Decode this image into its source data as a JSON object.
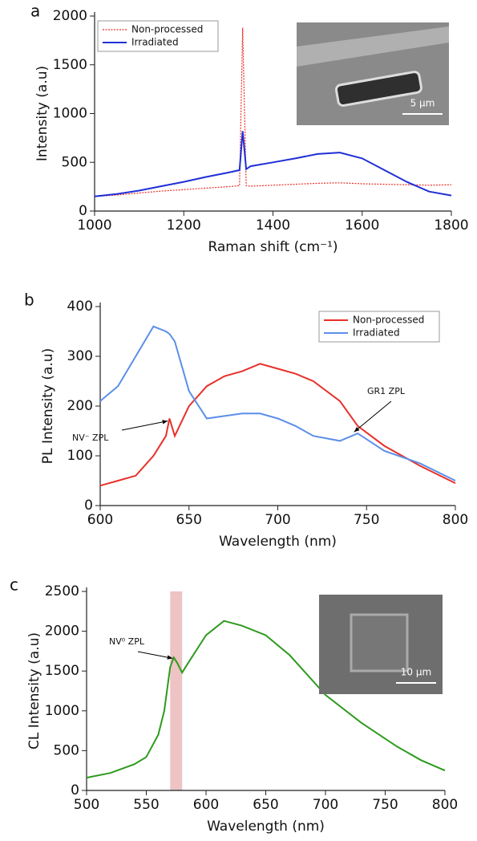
{
  "chart_data": [
    {
      "type": "line",
      "panel": "a",
      "xlabel": "Raman shift (cm⁻¹)",
      "ylabel": "Intensity (a.u)",
      "x": [
        1000,
        1050,
        1100,
        1150,
        1200,
        1250,
        1300,
        1325,
        1332,
        1340,
        1350,
        1400,
        1450,
        1500,
        1550,
        1600,
        1650,
        1700,
        1750,
        1800
      ],
      "series": [
        {
          "name": "Non-processed",
          "color": "#e8302a",
          "dashed": true,
          "values": [
            150,
            165,
            185,
            205,
            220,
            235,
            250,
            260,
            1880,
            260,
            255,
            265,
            275,
            285,
            290,
            280,
            275,
            270,
            265,
            270
          ]
        },
        {
          "name": "Irradiated",
          "color": "#1f2fd6",
          "dashed": false,
          "values": [
            150,
            175,
            210,
            255,
            300,
            350,
            395,
            420,
            820,
            430,
            460,
            500,
            540,
            585,
            600,
            540,
            420,
            300,
            200,
            160
          ]
        }
      ],
      "xlim": [
        1000,
        1800
      ],
      "xticks": [
        1000,
        1200,
        1400,
        1600,
        1800
      ],
      "ylim": [
        0,
        2000
      ],
      "yticks": [
        0,
        500,
        1000,
        1500,
        2000
      ],
      "legend": "upper left",
      "inset_label": "5 μm"
    },
    {
      "type": "line",
      "panel": "b",
      "xlabel": "Wavelength (nm)",
      "ylabel": "PL Intensity (a.u)",
      "x": [
        600,
        610,
        620,
        630,
        637,
        639,
        642,
        650,
        660,
        670,
        680,
        690,
        700,
        710,
        720,
        735,
        745,
        760,
        780,
        800
      ],
      "series": [
        {
          "name": "Non-processed",
          "color": "#e8302a",
          "dashed": false,
          "values": [
            40,
            50,
            60,
            100,
            140,
            175,
            140,
            200,
            240,
            260,
            270,
            285,
            275,
            265,
            250,
            210,
            160,
            120,
            80,
            45
          ]
        },
        {
          "name": "Irradiated",
          "color": "#5b8fe8",
          "dashed": false,
          "values": [
            210,
            240,
            300,
            360,
            350,
            345,
            330,
            230,
            175,
            180,
            185,
            185,
            175,
            160,
            140,
            130,
            145,
            110,
            85,
            50
          ]
        }
      ],
      "xlim": [
        600,
        800
      ],
      "xticks": [
        600,
        650,
        700,
        750,
        800
      ],
      "ylim": [
        0,
        400
      ],
      "yticks": [
        0,
        100,
        200,
        300,
        400
      ],
      "legend": "upper right",
      "annotations": [
        "NV⁻ ZPL",
        "GR1 ZPL"
      ]
    },
    {
      "type": "line",
      "panel": "c",
      "xlabel": "Wavelength (nm)",
      "ylabel": "CL Intensity (a.u)",
      "x": [
        500,
        520,
        540,
        550,
        560,
        565,
        570,
        573,
        576,
        580,
        585,
        600,
        615,
        630,
        650,
        670,
        700,
        730,
        760,
        780,
        800
      ],
      "series": [
        {
          "color": "#2e9a1e",
          "dashed": false,
          "values": [
            160,
            220,
            330,
            420,
            700,
            1000,
            1550,
            1670,
            1600,
            1480,
            1600,
            1950,
            2130,
            2070,
            1950,
            1700,
            1200,
            850,
            550,
            380,
            250
          ]
        }
      ],
      "xlim": [
        500,
        800
      ],
      "xticks": [
        500,
        550,
        600,
        650,
        700,
        750,
        800
      ],
      "ylim": [
        0,
        2500
      ],
      "yticks": [
        0,
        500,
        1000,
        1500,
        2000,
        2500
      ],
      "highlight": [
        570,
        580
      ],
      "annotations": [
        "NV⁰ ZPL"
      ],
      "inset_label": "10 μm"
    }
  ]
}
